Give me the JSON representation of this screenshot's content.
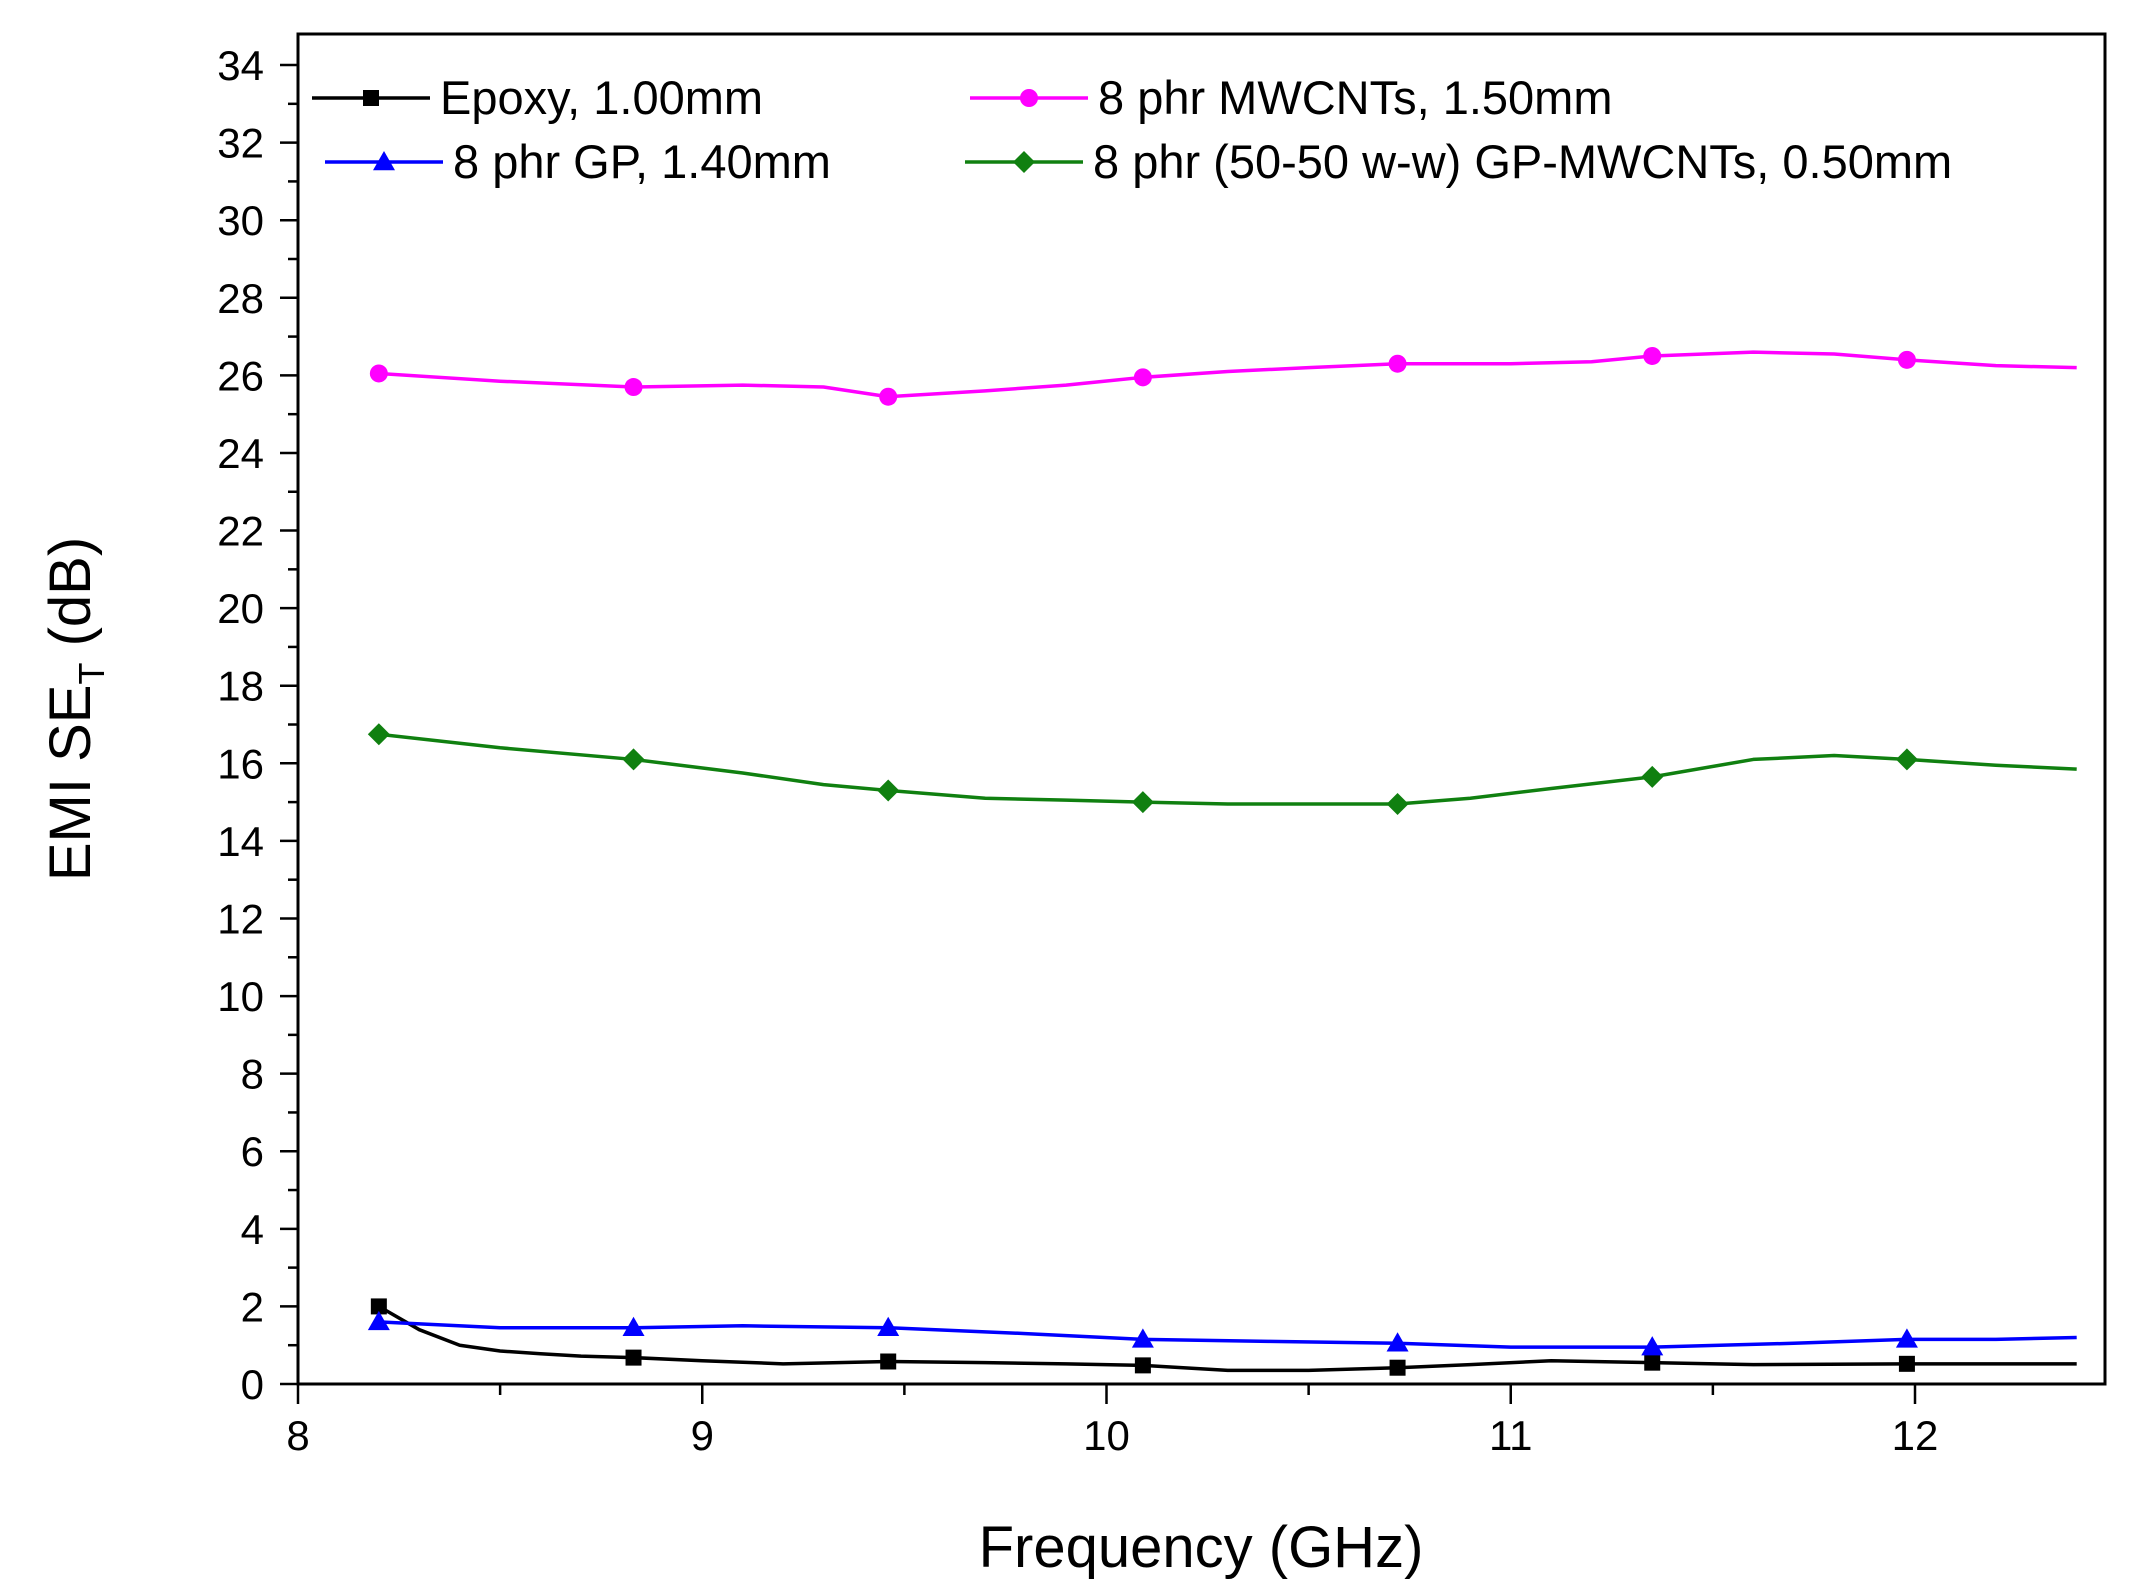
{
  "chart_data": {
    "type": "line",
    "title": "",
    "xlabel": "Frequency (GHz)",
    "ylabel": {
      "main": "EMI SE",
      "subscript": "T",
      "unit": " (dB)"
    },
    "xlim": [
      8,
      12.47
    ],
    "ylim": [
      0,
      34.8
    ],
    "xticks": [
      8,
      9,
      10,
      11,
      12
    ],
    "xtick_labels": [
      "8",
      "9",
      "10",
      "11",
      "12"
    ],
    "yticks": [
      0,
      2,
      4,
      6,
      8,
      10,
      12,
      14,
      16,
      18,
      20,
      22,
      24,
      26,
      28,
      30,
      32,
      34
    ],
    "ytick_labels": [
      "0",
      "2",
      "4",
      "6",
      "8",
      "10",
      "12",
      "14",
      "16",
      "18",
      "20",
      "22",
      "24",
      "26",
      "28",
      "30",
      "32",
      "34"
    ],
    "legend_position": "top",
    "series": [
      {
        "name": "Epoxy, 1.00mm",
        "color": "#000000",
        "marker": "square",
        "x": [
          8.2,
          8.3,
          8.4,
          8.5,
          8.6,
          8.7,
          8.83,
          9.0,
          9.2,
          9.46,
          9.7,
          9.9,
          10.09,
          10.3,
          10.5,
          10.72,
          10.9,
          11.1,
          11.35,
          11.6,
          11.98,
          12.2,
          12.4
        ],
        "y": [
          2.0,
          1.4,
          1.0,
          0.85,
          0.78,
          0.72,
          0.68,
          0.6,
          0.52,
          0.58,
          0.55,
          0.52,
          0.48,
          0.35,
          0.35,
          0.42,
          0.5,
          0.6,
          0.55,
          0.5,
          0.52,
          0.52,
          0.52
        ]
      },
      {
        "name": "8 phr MWCNTs, 1.50mm",
        "color": "#ff00ff",
        "marker": "circle",
        "x": [
          8.2,
          8.5,
          8.83,
          9.1,
          9.3,
          9.46,
          9.7,
          9.9,
          10.09,
          10.3,
          10.5,
          10.72,
          11.0,
          11.2,
          11.35,
          11.6,
          11.8,
          11.98,
          12.2,
          12.4
        ],
        "y": [
          26.05,
          25.85,
          25.7,
          25.75,
          25.7,
          25.45,
          25.6,
          25.75,
          25.95,
          26.1,
          26.2,
          26.3,
          26.3,
          26.35,
          26.5,
          26.6,
          26.55,
          26.4,
          26.25,
          26.2
        ]
      },
      {
        "name": "8 phr GP, 1.40mm",
        "color": "#0000ff",
        "marker": "triangle",
        "x": [
          8.2,
          8.5,
          8.83,
          9.1,
          9.46,
          9.8,
          10.09,
          10.4,
          10.72,
          11.0,
          11.35,
          11.7,
          11.98,
          12.2,
          12.4
        ],
        "y": [
          1.6,
          1.45,
          1.45,
          1.5,
          1.45,
          1.3,
          1.15,
          1.1,
          1.05,
          0.95,
          0.95,
          1.05,
          1.15,
          1.15,
          1.2
        ]
      },
      {
        "name": "8 phr (50-50 w-w) GP-MWCNTs, 0.50mm",
        "color": "#108010",
        "marker": "diamond",
        "x": [
          8.2,
          8.5,
          8.83,
          9.1,
          9.3,
          9.46,
          9.7,
          9.9,
          10.09,
          10.3,
          10.5,
          10.72,
          10.9,
          11.1,
          11.35,
          11.6,
          11.8,
          11.98,
          12.2,
          12.4
        ],
        "y": [
          16.75,
          16.4,
          16.1,
          15.75,
          15.45,
          15.3,
          15.1,
          15.05,
          15.0,
          14.95,
          14.95,
          14.95,
          15.1,
          15.35,
          15.65,
          16.1,
          16.2,
          16.1,
          15.95,
          15.85
        ]
      }
    ],
    "marker_x": [
      8.2,
      8.83,
      9.46,
      10.09,
      10.72,
      11.35,
      11.98
    ]
  }
}
